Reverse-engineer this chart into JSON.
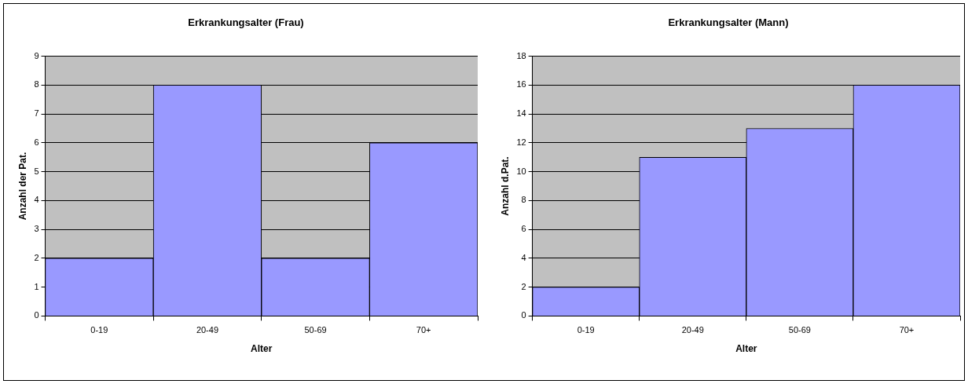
{
  "chart_data": [
    {
      "type": "bar",
      "title": "Erkrankungsalter (Frau)",
      "xlabel": "Alter",
      "ylabel": "Anzahl der Pat.",
      "categories": [
        "0-19",
        "20-49",
        "50-69",
        "70+"
      ],
      "values": [
        2,
        8,
        2,
        6
      ],
      "color": "#9999ff",
      "ylim": [
        0,
        9
      ],
      "yticks": [
        0,
        1,
        2,
        3,
        4,
        5,
        6,
        7,
        8,
        9
      ],
      "grid": "y"
    },
    {
      "type": "bar",
      "title": "Erkrankungsalter (Mann)",
      "xlabel": "Alter",
      "ylabel": "Anzahl d.Pat.",
      "categories": [
        "0-19",
        "20-49",
        "50-69",
        "70+"
      ],
      "values": [
        2,
        11,
        13,
        16
      ],
      "color": "#9999ff",
      "ylim": [
        0,
        18
      ],
      "yticks": [
        0,
        2,
        4,
        6,
        8,
        10,
        12,
        14,
        16,
        18
      ],
      "grid": "y"
    }
  ]
}
